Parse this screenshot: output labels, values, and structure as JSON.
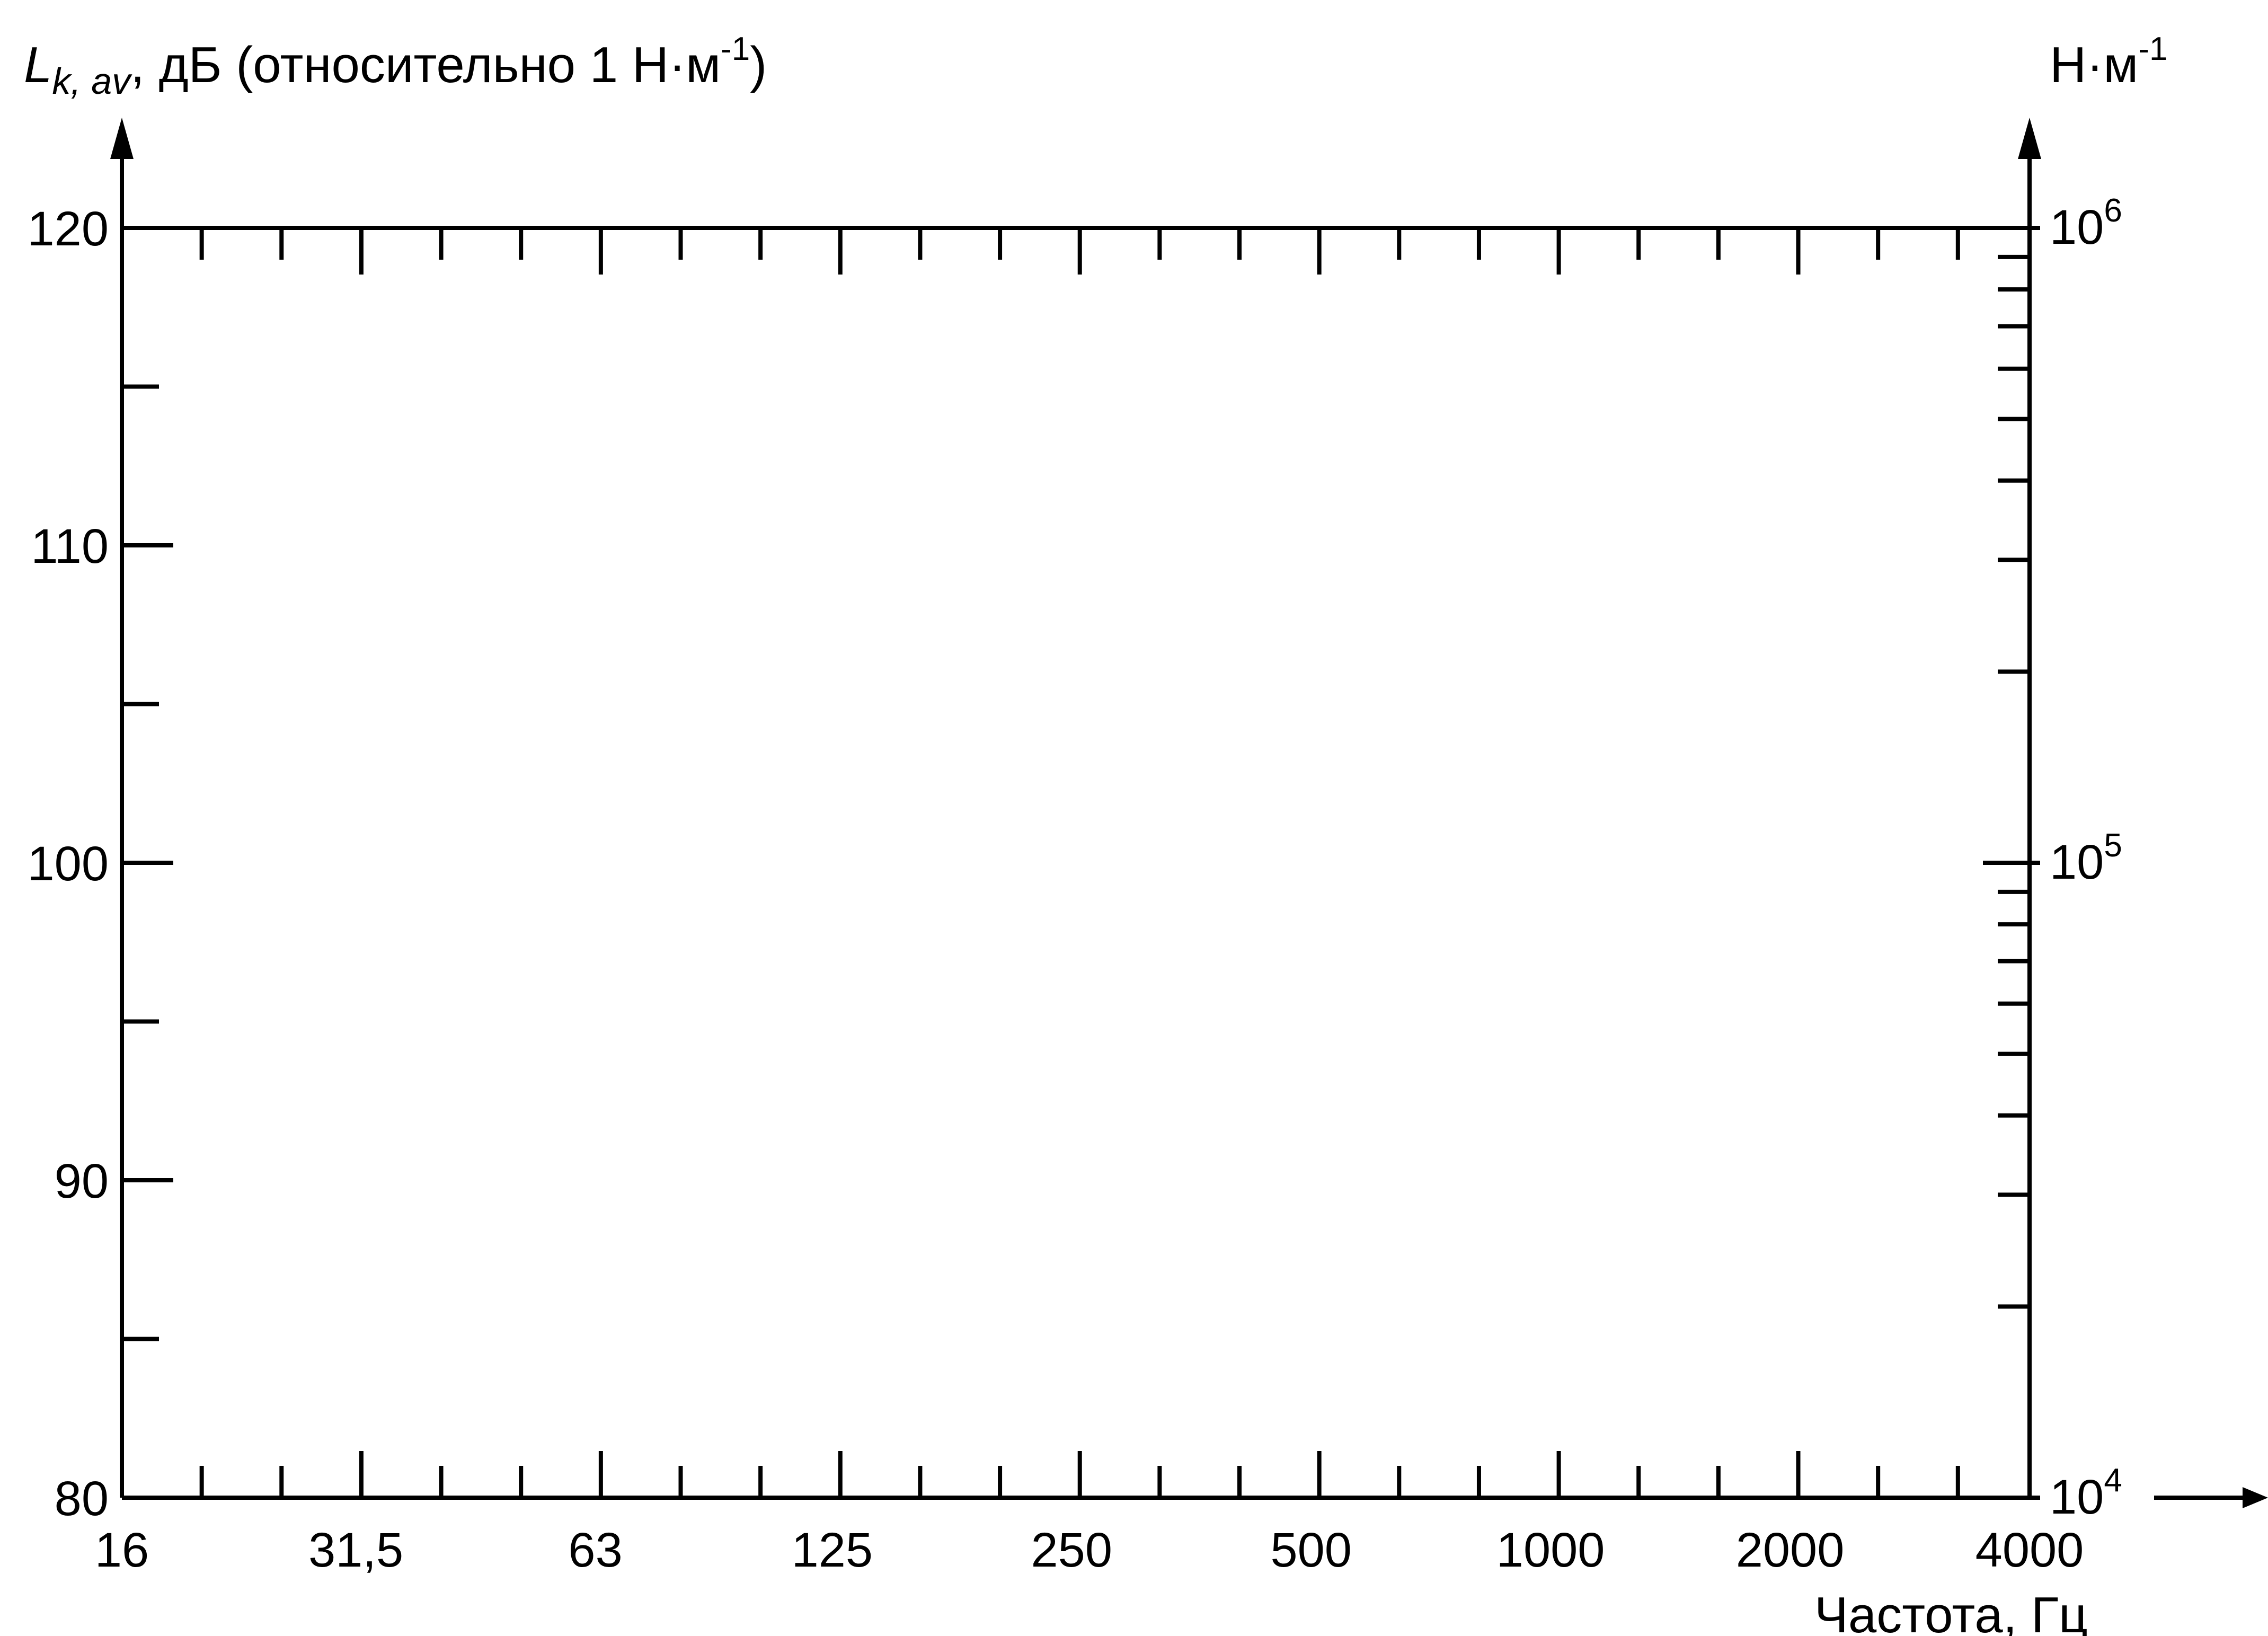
{
  "chart_data": {
    "type": "line",
    "left_axis": {
      "label_main": "L",
      "label_sub": "k, av",
      "label_rest": ", дБ (относительно 1 Н·м",
      "label_sup": "-1",
      "label_close": ")",
      "ticks": [
        "120",
        "110",
        "100",
        "90",
        "80"
      ],
      "tick_values": [
        120,
        110,
        100,
        90,
        80
      ],
      "minor_values": [
        115,
        105,
        95,
        85
      ],
      "range": [
        80,
        120
      ]
    },
    "right_axis": {
      "unit_main": "Н·м",
      "unit_sup": "-1",
      "scale": "log",
      "range": [
        10000,
        1000000
      ],
      "ticks": [
        {
          "base": "10",
          "exp": "6",
          "value": 1000000
        },
        {
          "base": "10",
          "exp": "5",
          "value": 100000
        },
        {
          "base": "10",
          "exp": "4",
          "value": 10000
        }
      ]
    },
    "x_axis": {
      "label": "Частота, Гц",
      "scale": "log",
      "tick_labels": [
        "16",
        "31,5",
        "63",
        "125",
        "250",
        "500",
        "1000",
        "2000",
        "4000"
      ],
      "tick_values": [
        16,
        31.5,
        63,
        125,
        250,
        500,
        1000,
        2000,
        4000
      ],
      "range": [
        16,
        4000
      ]
    },
    "series": [],
    "grid": false,
    "legend": "none"
  }
}
